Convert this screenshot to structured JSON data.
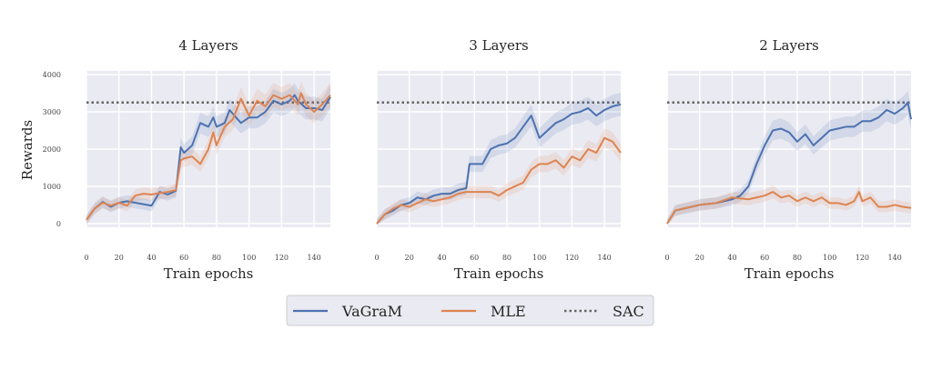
{
  "chart_data": [
    {
      "type": "line",
      "title": "4 Layers",
      "xlabel": "Train epochs",
      "ylabel": "Rewards",
      "xlim": [
        0,
        150
      ],
      "ylim": [
        -100,
        4100
      ],
      "xticks": [
        0,
        20,
        40,
        60,
        80,
        100,
        120,
        140
      ],
      "yticks": [
        0,
        1000,
        2000,
        3000,
        4000
      ],
      "show_yticks": true,
      "series": [
        {
          "name": "VaGraM",
          "x": [
            0,
            5,
            10,
            15,
            20,
            25,
            30,
            35,
            40,
            45,
            50,
            55,
            58,
            60,
            65,
            70,
            75,
            78,
            80,
            85,
            88,
            90,
            95,
            100,
            105,
            110,
            115,
            120,
            125,
            128,
            130,
            135,
            140,
            145,
            150
          ],
          "y": [
            100,
            400,
            580,
            450,
            560,
            600,
            560,
            520,
            480,
            850,
            780,
            880,
            2050,
            1900,
            2100,
            2700,
            2600,
            2850,
            2600,
            2700,
            3050,
            2950,
            2700,
            2850,
            2850,
            3000,
            3300,
            3200,
            3300,
            3450,
            3300,
            3100,
            3100,
            3050,
            3400
          ]
        },
        {
          "name": "MLE",
          "x": [
            0,
            5,
            10,
            15,
            20,
            25,
            30,
            35,
            40,
            45,
            50,
            55,
            58,
            60,
            65,
            70,
            75,
            78,
            80,
            85,
            90,
            95,
            100,
            105,
            110,
            115,
            120,
            125,
            130,
            132,
            135,
            140,
            145,
            150
          ],
          "y": [
            100,
            400,
            560,
            480,
            560,
            480,
            750,
            800,
            780,
            820,
            850,
            900,
            1700,
            1750,
            1800,
            1600,
            2000,
            2450,
            2100,
            2600,
            2800,
            3350,
            2900,
            3300,
            3150,
            3450,
            3350,
            3450,
            3200,
            3500,
            3200,
            3000,
            3200,
            3450
          ]
        }
      ],
      "reference": {
        "name": "SAC",
        "y": 3250
      }
    },
    {
      "type": "line",
      "title": "3 Layers",
      "xlabel": "Train epochs",
      "xlim": [
        0,
        150
      ],
      "ylim": [
        -100,
        4100
      ],
      "xticks": [
        0,
        20,
        40,
        60,
        80,
        100,
        120,
        140
      ],
      "show_yticks": false,
      "series": [
        {
          "name": "VaGraM",
          "x": [
            0,
            5,
            10,
            15,
            20,
            25,
            30,
            35,
            40,
            45,
            50,
            55,
            57,
            60,
            65,
            70,
            75,
            80,
            85,
            90,
            95,
            100,
            105,
            110,
            115,
            120,
            125,
            130,
            135,
            140,
            145,
            150
          ],
          "y": [
            0,
            250,
            350,
            500,
            550,
            700,
            650,
            750,
            800,
            800,
            900,
            950,
            1600,
            1600,
            1600,
            2000,
            2100,
            2150,
            2300,
            2600,
            2900,
            2300,
            2500,
            2700,
            2800,
            2950,
            3000,
            3100,
            2900,
            3050,
            3150,
            3200
          ]
        },
        {
          "name": "MLE",
          "x": [
            0,
            5,
            10,
            15,
            20,
            25,
            30,
            35,
            40,
            45,
            50,
            55,
            60,
            65,
            70,
            75,
            80,
            85,
            90,
            95,
            100,
            105,
            110,
            115,
            120,
            125,
            130,
            135,
            140,
            145,
            150
          ],
          "y": [
            0,
            250,
            400,
            500,
            450,
            550,
            650,
            600,
            650,
            700,
            800,
            850,
            850,
            850,
            850,
            750,
            900,
            1000,
            1100,
            1450,
            1600,
            1600,
            1700,
            1500,
            1800,
            1700,
            2000,
            1900,
            2300,
            2200,
            1900
          ]
        }
      ],
      "reference": {
        "name": "SAC",
        "y": 3250
      }
    },
    {
      "type": "line",
      "title": "2 Layers",
      "xlabel": "Train epochs",
      "xlim": [
        0,
        150
      ],
      "ylim": [
        -100,
        4100
      ],
      "xticks": [
        0,
        20,
        40,
        60,
        80,
        100,
        120,
        140
      ],
      "show_yticks": false,
      "series": [
        {
          "name": "VaGraM",
          "x": [
            0,
            5,
            10,
            20,
            30,
            40,
            45,
            50,
            55,
            60,
            65,
            70,
            75,
            80,
            85,
            90,
            95,
            100,
            105,
            110,
            115,
            120,
            125,
            130,
            135,
            140,
            145,
            148,
            150
          ],
          "y": [
            0,
            350,
            400,
            500,
            550,
            650,
            750,
            1000,
            1600,
            2100,
            2500,
            2550,
            2450,
            2200,
            2400,
            2100,
            2300,
            2500,
            2550,
            2600,
            2600,
            2750,
            2750,
            2850,
            3050,
            2950,
            3100,
            3250,
            2800
          ]
        },
        {
          "name": "MLE",
          "x": [
            0,
            5,
            10,
            20,
            30,
            40,
            50,
            55,
            60,
            65,
            70,
            75,
            80,
            85,
            90,
            95,
            100,
            105,
            110,
            115,
            118,
            120,
            125,
            130,
            135,
            140,
            145,
            150
          ],
          "y": [
            0,
            350,
            400,
            500,
            550,
            700,
            650,
            700,
            750,
            850,
            700,
            750,
            600,
            700,
            600,
            700,
            550,
            550,
            500,
            600,
            850,
            600,
            700,
            450,
            450,
            500,
            450,
            420
          ]
        }
      ],
      "reference": {
        "name": "SAC",
        "y": 3250
      }
    }
  ],
  "legend": {
    "placement": "bottom-center",
    "entries": [
      {
        "label": "VaGraM",
        "color": "#4c72b0",
        "style": "solid"
      },
      {
        "label": "MLE",
        "color": "#dd8452",
        "style": "solid"
      },
      {
        "label": "SAC",
        "color": "#666666",
        "style": "dotted"
      }
    ]
  },
  "colors": {
    "VaGraM": "#4c72b0",
    "MLE": "#dd8452",
    "SAC": "#666666",
    "background": "#eaeaf2"
  }
}
